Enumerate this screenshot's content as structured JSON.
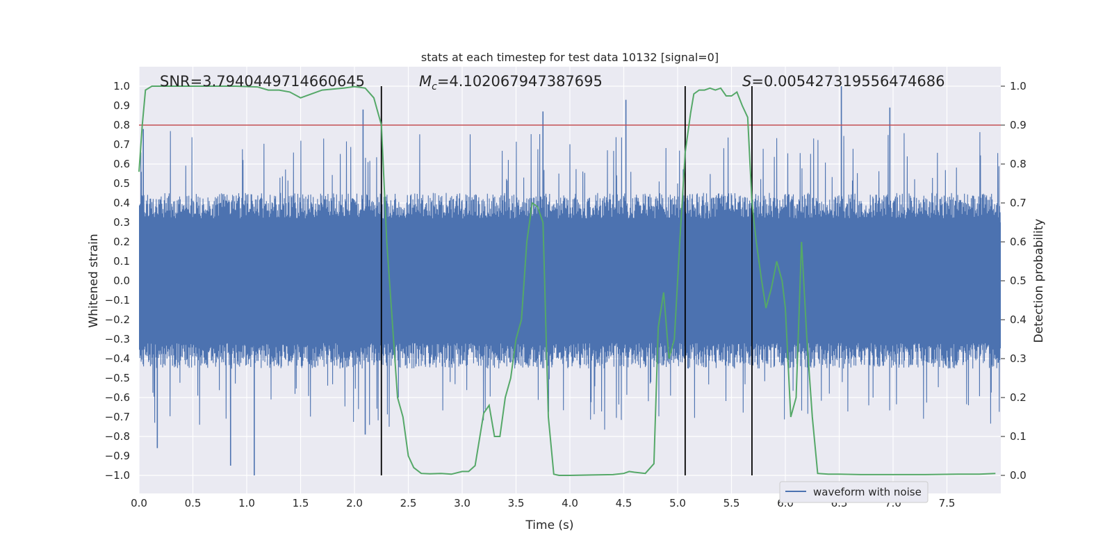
{
  "chart_data": {
    "type": "line",
    "title": "stats at each timestep for test data 10132 [signal=0]",
    "xlabel": "Time (s)",
    "ylabel_left": "Whitened strain",
    "ylabel_right": "Detection probability",
    "xlim": [
      0.0,
      8.0
    ],
    "ylim_left": [
      -1.1,
      1.1
    ],
    "ylim_right": [
      -0.05,
      1.05
    ],
    "x_ticks": [
      "0.0",
      "0.5",
      "1.0",
      "1.5",
      "2.0",
      "2.5",
      "3.0",
      "3.5",
      "4.0",
      "4.5",
      "5.0",
      "5.5",
      "6.0",
      "6.5",
      "7.0",
      "7.5"
    ],
    "y_ticks_left": [
      "1.0",
      "0.9",
      "0.8",
      "0.7",
      "0.6",
      "0.5",
      "0.4",
      "0.3",
      "0.2",
      "0.1",
      "0.0",
      "−0.1",
      "−0.2",
      "−0.3",
      "−0.4",
      "−0.5",
      "−0.6",
      "−0.7",
      "−0.8",
      "−0.9",
      "−1.0"
    ],
    "y_ticks_right": [
      "1.0",
      "0.9",
      "0.8",
      "0.7",
      "0.6",
      "0.5",
      "0.4",
      "0.3",
      "0.2",
      "0.1",
      "0.0"
    ],
    "grid": true,
    "annotations": {
      "snr": "SNR=3.7940449714660645",
      "mc_symbol": "M",
      "mc_sub": "c",
      "mc_value": "=4.102067947387695",
      "s_symbol": "S",
      "s_value": "=0.005427319556474686"
    },
    "threshold": {
      "value": 0.9,
      "color": "#c44e52"
    },
    "vertical_lines": [
      2.25,
      5.07,
      5.69
    ],
    "legend": {
      "entries": [
        "waveform with noise"
      ],
      "location": "lower-right"
    },
    "series": [
      {
        "name": "waveform with noise",
        "axis": "left",
        "color": "#4c72b0",
        "kind": "dense-noise",
        "typical_envelope": [
          -0.45,
          0.45
        ],
        "peak_spikes_x": [
          0.04,
          0.17,
          0.85,
          1.07,
          2.08,
          2.1,
          3.75,
          4.52,
          6.52,
          6.97
        ],
        "peak_spikes_y": [
          0.78,
          -0.86,
          -0.95,
          -1.0,
          0.88,
          -0.79,
          0.87,
          0.93,
          1.0,
          0.89
        ]
      },
      {
        "name": "",
        "axis": "right",
        "color": "#55a868",
        "x": [
          0.0,
          0.03,
          0.06,
          0.12,
          0.3,
          0.6,
          0.9,
          1.1,
          1.2,
          1.3,
          1.4,
          1.5,
          1.6,
          1.7,
          1.9,
          2.0,
          2.1,
          2.18,
          2.25,
          2.3,
          2.35,
          2.4,
          2.45,
          2.5,
          2.55,
          2.62,
          2.7,
          2.8,
          2.9,
          3.0,
          3.06,
          3.12,
          3.2,
          3.25,
          3.3,
          3.35,
          3.4,
          3.45,
          3.5,
          3.55,
          3.6,
          3.65,
          3.7,
          3.75,
          3.8,
          3.85,
          3.9,
          4.0,
          4.2,
          4.4,
          4.5,
          4.55,
          4.6,
          4.7,
          4.78,
          4.82,
          4.87,
          4.92,
          4.97,
          5.02,
          5.07,
          5.12,
          5.15,
          5.2,
          5.25,
          5.3,
          5.35,
          5.4,
          5.45,
          5.5,
          5.55,
          5.6,
          5.65,
          5.69,
          5.73,
          5.78,
          5.82,
          5.87,
          5.92,
          5.97,
          6.0,
          6.05,
          6.1,
          6.15,
          6.2,
          6.25,
          6.3,
          6.4,
          6.5,
          6.7,
          7.0,
          7.3,
          7.6,
          7.8,
          7.95
        ],
        "y": [
          0.78,
          0.9,
          0.99,
          1.0,
          1.0,
          1.0,
          1.0,
          0.998,
          0.99,
          0.99,
          0.985,
          0.97,
          0.98,
          0.99,
          0.995,
          0.999,
          0.995,
          0.97,
          0.9,
          0.6,
          0.4,
          0.2,
          0.15,
          0.05,
          0.02,
          0.005,
          0.004,
          0.005,
          0.003,
          0.01,
          0.01,
          0.025,
          0.16,
          0.18,
          0.1,
          0.1,
          0.2,
          0.25,
          0.35,
          0.4,
          0.6,
          0.7,
          0.69,
          0.65,
          0.15,
          0.003,
          0.0,
          0.0,
          0.001,
          0.002,
          0.005,
          0.01,
          0.008,
          0.005,
          0.03,
          0.38,
          0.47,
          0.3,
          0.35,
          0.6,
          0.83,
          0.93,
          0.98,
          0.99,
          0.99,
          0.995,
          0.99,
          0.995,
          0.975,
          0.975,
          0.985,
          0.95,
          0.92,
          0.7,
          0.6,
          0.5,
          0.43,
          0.48,
          0.55,
          0.5,
          0.43,
          0.15,
          0.2,
          0.6,
          0.35,
          0.15,
          0.005,
          0.003,
          0.003,
          0.002,
          0.002,
          0.002,
          0.003,
          0.003,
          0.005
        ]
      }
    ]
  }
}
